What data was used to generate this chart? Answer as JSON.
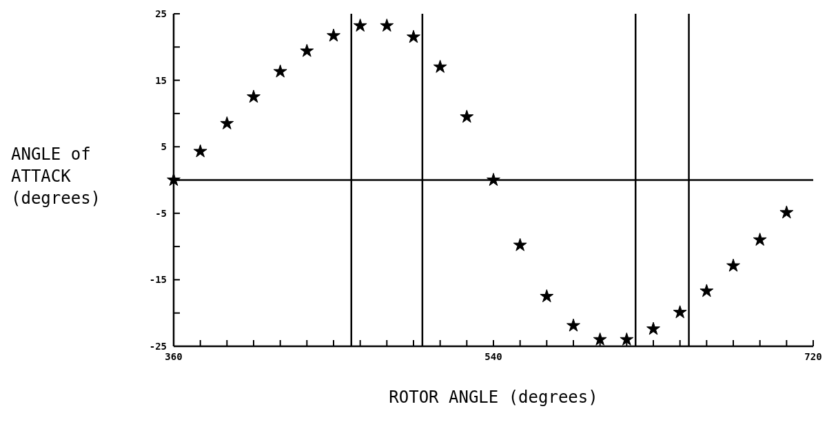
{
  "chart_data": {
    "type": "scatter",
    "xlabel": "ROTOR ANGLE (degrees)",
    "ylabel": "ANGLE of ATTACK (degrees)",
    "x": [
      360,
      375,
      390,
      405,
      420,
      435,
      450,
      465,
      480,
      495,
      510,
      525,
      540,
      555,
      570,
      585,
      600,
      615,
      630,
      645,
      660,
      675,
      690,
      705
    ],
    "series": [
      {
        "color": "#000000",
        "values": [
          0,
          4.3,
          8.5,
          12.5,
          16.3,
          19.4,
          21.7,
          23.2,
          23.2,
          21.5,
          17,
          9.5,
          0,
          -9.8,
          -17.5,
          -21.9,
          -24,
          -24,
          -22.4,
          -19.9,
          -16.7,
          -12.9,
          -9,
          -4.9
        ]
      }
    ],
    "marker": "star",
    "grid": false,
    "xlim": [
      360,
      720
    ],
    "xticks": [
      360,
      {
        "value": 375,
        "label": null
      },
      {
        "value": 390,
        "label": null
      },
      {
        "value": 405,
        "label": null
      },
      {
        "value": 420,
        "label": null
      },
      {
        "value": 435,
        "label": null
      },
      {
        "value": 450,
        "label": null
      },
      {
        "value": 465,
        "label": null
      },
      {
        "value": 480,
        "label": null
      },
      {
        "value": 495,
        "label": null
      },
      {
        "value": 510,
        "label": null
      },
      {
        "value": 525,
        "label": null
      },
      540,
      {
        "value": 555,
        "label": null
      },
      {
        "value": 570,
        "label": null
      },
      {
        "value": 585,
        "label": null
      },
      {
        "value": 600,
        "label": null
      },
      {
        "value": 615,
        "label": null
      },
      {
        "value": 630,
        "label": null
      },
      {
        "value": 645,
        "label": null
      },
      {
        "value": 660,
        "label": null
      },
      {
        "value": 675,
        "label": null
      },
      {
        "value": 690,
        "label": null
      },
      {
        "value": 705,
        "label": null
      },
      720
    ],
    "ylim": [
      -25,
      25
    ],
    "yticks": [
      -25,
      {
        "value": -20,
        "label": null
      },
      -15,
      {
        "value": -10,
        "label": null
      },
      -5,
      {
        "value": 0,
        "label": null
      },
      5,
      {
        "value": 10,
        "label": null
      },
      15,
      {
        "value": 20,
        "label": null
      },
      25
    ],
    "ref_lines": [
      {
        "axis": "y",
        "value": 0,
        "color": "#000000"
      },
      {
        "axis": "x",
        "value": 460,
        "color": "#000000"
      },
      {
        "axis": "x",
        "value": 500,
        "color": "#000000"
      },
      {
        "axis": "x",
        "value": 620,
        "color": "#000000"
      },
      {
        "axis": "x",
        "value": 650,
        "color": "#000000"
      }
    ]
  }
}
